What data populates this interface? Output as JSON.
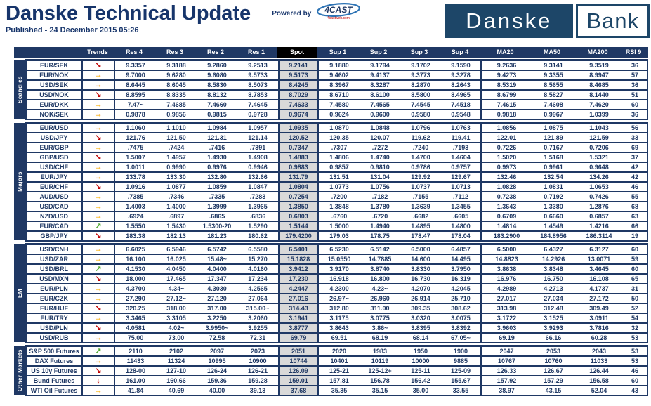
{
  "header": {
    "title": "Danske Technical Update",
    "published": "Published - 24 December 2015 05:26",
    "powered_by": "Powered by",
    "fourcast_logo": {
      "text": "4CAST",
      "subtext": "4castweb.com"
    },
    "bank_logo": {
      "left": "Danske",
      "right": "Bank"
    }
  },
  "colors": {
    "navy": "#1F3864",
    "title_navy": "#17356B",
    "logo_box": "#1D4668",
    "spot_cell_bg": "#D9D9D9",
    "spot_header_bg": "#000000",
    "trend_down_red": "#C00000",
    "trend_flat_yellow": "#FFC000",
    "trend_up_green": "#4CA72C",
    "swoosh_blue": "#2E74B5"
  },
  "table": {
    "columns": [
      "Trends",
      "Res 4",
      "Res 3",
      "Res 2",
      "Res 1",
      "Spot",
      "Sup 1",
      "Sup 2",
      "Sup 3",
      "Sup 4",
      "MA20",
      "MA50",
      "MA200",
      "RSI 9"
    ],
    "value_names": [
      "res4-value",
      "res3-value",
      "res2-value",
      "res1-value",
      "spot-value",
      "sup1-value",
      "sup2-value",
      "sup3-value",
      "sup4-value",
      "ma20-value",
      "ma50-value",
      "ma200-value",
      "rsi9-value"
    ],
    "trend_glyphs": {
      "down": "↘",
      "flat": "→",
      "up": "↗",
      "fall": "↓"
    },
    "groups": [
      {
        "label": "Scandies",
        "rows": [
          {
            "name": "EUR/SEK",
            "trend": "down",
            "values": [
              "9.3357",
              "9.3188",
              "9.2860",
              "9.2513",
              "9.2141",
              "9.1880",
              "9.1794",
              "9.1702",
              "9.1590",
              "9.2636",
              "9.3141",
              "9.3519",
              "36"
            ]
          },
          {
            "name": "EUR/NOK",
            "trend": "flat",
            "values": [
              "9.7000",
              "9.6280",
              "9.6080",
              "9.5733",
              "9.5173",
              "9.4602",
              "9.4137",
              "9.3773",
              "9.3278",
              "9.4273",
              "9.3355",
              "8.9947",
              "57"
            ]
          },
          {
            "name": "USD/SEK",
            "trend": "flat",
            "values": [
              "8.6445",
              "8.6045",
              "8.5830",
              "8.5073",
              "8.4245",
              "8.3967",
              "8.3287",
              "8.2870",
              "8.2643",
              "8.5319",
              "8.5655",
              "8.4685",
              "36"
            ]
          },
          {
            "name": "USD/NOK",
            "trend": "down",
            "values": [
              "8.8595",
              "8.8335",
              "8.8132",
              "8.7853",
              "8.7029",
              "8.6710",
              "8.6100",
              "8.5800",
              "8.4965",
              "8.6799",
              "8.5827",
              "8.1440",
              "51"
            ]
          },
          {
            "name": "EUR/DKK",
            "trend": "flat",
            "values": [
              "7.47~",
              "7.4685",
              "7.4660",
              "7.4645",
              "7.4633",
              "7.4580",
              "7.4565",
              "7.4545",
              "7.4518",
              "7.4615",
              "7.4608",
              "7.4620",
              "60"
            ]
          },
          {
            "name": "NOK/SEK",
            "trend": "flat",
            "values": [
              "0.9878",
              "0.9856",
              "0.9815",
              "0.9728",
              "0.9674",
              "0.9624",
              "0.9600",
              "0.9580",
              "0.9548",
              "0.9818",
              "0.9967",
              "1.0399",
              "36"
            ]
          }
        ]
      },
      {
        "label": "Majors",
        "rows": [
          {
            "name": "EUR/USD",
            "trend": "flat",
            "values": [
              "1.1060",
              "1.1010",
              "1.0984",
              "1.0957",
              "1.0935",
              "1.0870",
              "1.0848",
              "1.0796",
              "1.0763",
              "1.0856",
              "1.0875",
              "1.1043",
              "56"
            ]
          },
          {
            "name": "USD/JPY",
            "trend": "down",
            "values": [
              "121.76",
              "121.50",
              "121.31",
              "121.14",
              "120.52",
              "120.35",
              "120.07",
              "119.62",
              "119.41",
              "122.01",
              "121.89",
              "121.59",
              "33"
            ]
          },
          {
            "name": "EUR/GBP",
            "trend": "flat",
            "values": [
              ".7475",
              ".7424",
              ".7416",
              ".7391",
              "0.7347",
              ".7307",
              ".7272",
              ".7240",
              ".7193",
              "0.7226",
              "0.7167",
              "0.7206",
              "69"
            ]
          },
          {
            "name": "GBP/USD",
            "trend": "down",
            "values": [
              "1.5007",
              "1.4957",
              "1.4930",
              "1.4908",
              "1.4883",
              "1.4806",
              "1.4740",
              "1.4700",
              "1.4604",
              "1.5020",
              "1.5168",
              "1.5321",
              "37"
            ]
          },
          {
            "name": "USD/CHF",
            "trend": "flat",
            "values": [
              "1.0011",
              "0.9990",
              "0.9976",
              "0.9946",
              "0.9883",
              "0.9857",
              "0.9810",
              "0.9786",
              "0.9757",
              "0.9973",
              "0.9961",
              "0.9648",
              "42"
            ]
          },
          {
            "name": "EUR/JPY",
            "trend": "flat",
            "values": [
              "133.78",
              "133.30",
              "132.80",
              "132.66",
              "131.79",
              "131.51",
              "131.04",
              "129.92",
              "129.67",
              "132.46",
              "132.54",
              "134.26",
              "42"
            ]
          },
          {
            "name": "EUR/CHF",
            "trend": "down",
            "values": [
              "1.0916",
              "1.0877",
              "1.0859",
              "1.0847",
              "1.0804",
              "1.0773",
              "1.0756",
              "1.0737",
              "1.0713",
              "1.0828",
              "1.0831",
              "1.0653",
              "46"
            ]
          },
          {
            "name": "AUD/USD",
            "trend": "flat",
            "values": [
              ".7385",
              ".7346",
              ".7335",
              ".7283",
              "0.7254",
              ".7200",
              ".7182",
              ".7155",
              ".7112",
              "0.7238",
              "0.7192",
              "0.7426",
              "55"
            ]
          },
          {
            "name": "USD/CAD",
            "trend": "flat",
            "values": [
              "1.4003",
              "1.4000",
              "1.3999",
              "1.3965",
              "1.3850",
              "1.3848",
              "1.3780",
              "1.3639",
              "1.3455",
              "1.3643",
              "1.3380",
              "1.2876",
              "68"
            ]
          },
          {
            "name": "NZD/USD",
            "trend": "flat",
            "values": [
              ".6924",
              ".6897",
              ".6865",
              ".6836",
              "0.6803",
              ".6760",
              ".6720",
              ".6682",
              ".6605",
              "0.6709",
              "0.6660",
              "0.6857",
              "63"
            ]
          },
          {
            "name": "EUR/CAD",
            "trend": "up",
            "values": [
              "1.5550",
              "1.5430",
              "1.5300-20",
              "1.5290",
              "1.5144",
              "1.5000",
              "1.4940",
              "1.4895",
              "1.4800",
              "1.4814",
              "1.4549",
              "1.4216",
              "66"
            ]
          },
          {
            "name": "GBP/JPY",
            "trend": "down",
            "values": [
              "183.38",
              "182.13",
              "181.23",
              "180.62",
              "179.4200",
              "179.03",
              "178.75",
              "178.47",
              "178.04",
              "183.2900",
              "184.8956",
              "186.3114",
              "19"
            ]
          }
        ]
      },
      {
        "label": "EM",
        "rows": [
          {
            "name": "USD/CNH",
            "trend": "flat",
            "values": [
              "6.6025",
              "6.5946",
              "6.5742",
              "6.5580",
              "6.5401",
              "6.5230",
              "6.5142",
              "6.5000",
              "6.4857",
              "6.5000",
              "6.4327",
              "6.3127",
              "60"
            ]
          },
          {
            "name": "USD/ZAR",
            "trend": "flat",
            "values": [
              "16.100",
              "16.025",
              "15.48~",
              "15.270",
              "15.1828",
              "15.0550",
              "14.7885",
              "14.600",
              "14.495",
              "14.8823",
              "14.2926",
              "13.0071",
              "59"
            ]
          },
          {
            "name": "USD/BRL",
            "trend": "up",
            "values": [
              "4.1530",
              "4.0450",
              "4.0400",
              "4.0160",
              "3.9412",
              "3.9170",
              "3.8740",
              "3.8330",
              "3.7950",
              "3.8638",
              "3.8348",
              "3.4645",
              "60"
            ]
          },
          {
            "name": "USD/MXN",
            "trend": "down",
            "values": [
              "18.000",
              "17.465",
              "17.347",
              "17.234",
              "17.230",
              "16.918",
              "16.800",
              "16.730",
              "16.319",
              "16.976",
              "16.750",
              "16.108",
              "65"
            ]
          },
          {
            "name": "EUR/PLN",
            "trend": "flat",
            "values": [
              "4.3700",
              "4.34~",
              "4.3030",
              "4.2565",
              "4.2447",
              "4.2300",
              "4.23~",
              "4.2070",
              "4.2045",
              "4.2989",
              "4.2713",
              "4.1737",
              "31"
            ]
          },
          {
            "name": "EUR/CZK",
            "trend": "flat",
            "values": [
              "27.290",
              "27.12~",
              "27.120",
              "27.064",
              "27.016",
              "26.97~",
              "26.960",
              "26.914",
              "25.710",
              "27.017",
              "27.034",
              "27.172",
              "50"
            ]
          },
          {
            "name": "EUR/HUF",
            "trend": "down",
            "values": [
              "320.25",
              "318.00",
              "317.00",
              "315.00~",
              "314.43",
              "312.80",
              "311.00",
              "309.35",
              "308.62",
              "313.98",
              "312.48",
              "309.49",
              "52"
            ]
          },
          {
            "name": "EUR/TRY",
            "trend": "flat",
            "values": [
              "3.3465",
              "3.3105",
              "3.2250",
              "3.2060",
              "3.1941",
              "3.1175",
              "3.0775",
              "3.0320",
              "3.0075",
              "3.1722",
              "3.1525",
              "3.0911",
              "54"
            ]
          },
          {
            "name": "USD/PLN",
            "trend": "down",
            "values": [
              "4.0581",
              "4.02~",
              "3.9950~",
              "3.9255",
              "3.8777",
              "3.8643",
              "3.86~",
              "3.8395",
              "3.8392",
              "3.9603",
              "3.9293",
              "3.7816",
              "32"
            ]
          },
          {
            "name": "USD/RUB",
            "trend": "flat",
            "values": [
              "75.00",
              "73.00",
              "72.58",
              "72.31",
              "69.79",
              "69.51",
              "68.19",
              "68.14",
              "67.05~",
              "69.19",
              "66.16",
              "60.28",
              "53"
            ]
          }
        ]
      },
      {
        "label": "Other Markets",
        "rows": [
          {
            "name": "S&P 500 Futures",
            "trend": "up",
            "values": [
              "2110",
              "2102",
              "2097",
              "2073",
              "2051",
              "2020",
              "1983",
              "1950",
              "1900",
              "2047",
              "2053",
              "2043",
              "53"
            ]
          },
          {
            "name": "DAX Futures",
            "trend": "flat",
            "values": [
              "11433",
              "11324",
              "10995",
              "10900",
              "10744",
              "10401",
              "10119",
              "10000",
              "9885",
              "10767",
              "10760",
              "11033",
              "53"
            ]
          },
          {
            "name": "US 10y Futures",
            "trend": "down",
            "values": [
              "128-00",
              "127-10",
              "126-24",
              "126-21",
              "126.09",
              "125-21",
              "125-12+",
              "125-11",
              "125-09",
              "126.33",
              "126.67",
              "126.44",
              "46"
            ]
          },
          {
            "name": "Bund Futures",
            "trend": "fall",
            "values": [
              "161.00",
              "160.66",
              "159.36",
              "159.28",
              "159.01",
              "157.81",
              "156.78",
              "156.42",
              "155.67",
              "157.92",
              "157.29",
              "156.58",
              "60"
            ]
          },
          {
            "name": "WTI Oil Futures",
            "trend": "flat",
            "values": [
              "41.84",
              "40.69",
              "40.00",
              "39.13",
              "37.68",
              "35.35",
              "35.15",
              "35.00",
              "33.55",
              "38.97",
              "43.15",
              "52.04",
              "43"
            ]
          }
        ]
      }
    ]
  }
}
